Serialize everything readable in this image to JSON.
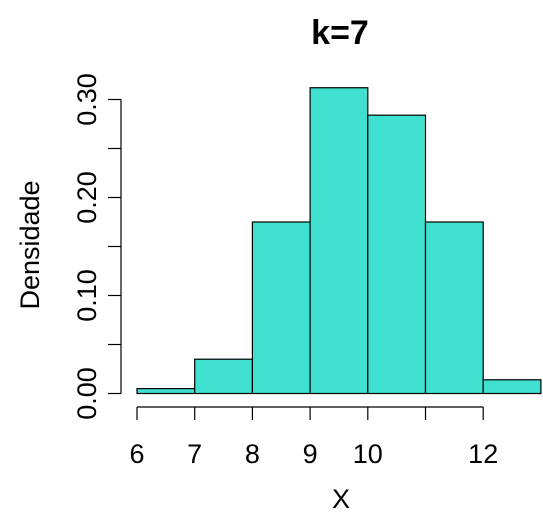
{
  "chart_data": {
    "type": "bar",
    "title": "k=7",
    "xlabel": "X",
    "ylabel": "Densidade",
    "bins": [
      {
        "x0": 6,
        "x1": 7,
        "value": 0.005
      },
      {
        "x0": 7,
        "x1": 8,
        "value": 0.035
      },
      {
        "x0": 8,
        "x1": 9,
        "value": 0.175
      },
      {
        "x0": 9,
        "x1": 10,
        "value": 0.312
      },
      {
        "x0": 10,
        "x1": 11,
        "value": 0.284
      },
      {
        "x0": 11,
        "x1": 12,
        "value": 0.175
      },
      {
        "x0": 12,
        "x1": 13,
        "value": 0.014
      }
    ],
    "xlim": [
      6,
      13
    ],
    "ylim": [
      0,
      0.3
    ],
    "x_ticks": [
      6,
      7,
      8,
      9,
      10,
      11,
      12
    ],
    "x_tick_labels": [
      "6",
      "7",
      "8",
      "9",
      "10",
      "",
      "12"
    ],
    "y_ticks": [
      0,
      0.05,
      0.1,
      0.15,
      0.2,
      0.25,
      0.3
    ],
    "y_tick_labels": [
      "0.00",
      "",
      "0.10",
      "",
      "0.20",
      "",
      "0.30"
    ],
    "bar_color": "#40e0d0",
    "grid": false
  }
}
